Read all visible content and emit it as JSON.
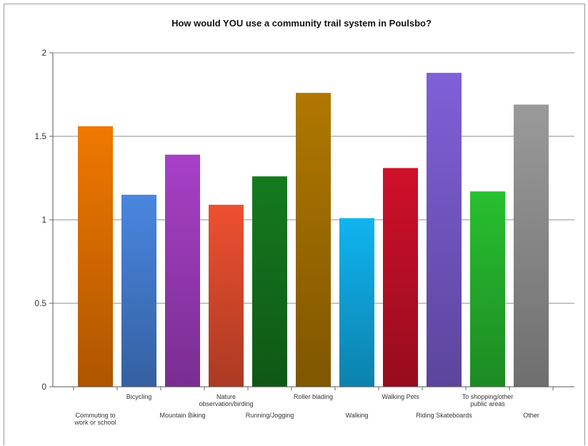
{
  "chart_data": {
    "type": "bar",
    "title": "How would YOU use a community trail system in Poulsbo?",
    "xlabel": "",
    "ylabel": "",
    "ylim": [
      0,
      2
    ],
    "yticks": [
      "0",
      "0.5",
      "1",
      "1.5",
      "2"
    ],
    "grid": true,
    "legend": "none",
    "categories": [
      "Commuting to work or school",
      "Bicycling",
      "Mountain Biking",
      "Nature observation/birding",
      "Running/Jogging",
      "Roller blading",
      "Walking",
      "Walking Pets",
      "Riding Skateboards",
      "To shopping/other public areas",
      "Other"
    ],
    "values": [
      1.56,
      1.15,
      1.39,
      1.09,
      1.26,
      1.76,
      1.01,
      1.31,
      1.88,
      1.17,
      1.69
    ],
    "colors": [
      "#f07800",
      "#4a86e0",
      "#a840c8",
      "#ee5030",
      "#157a1e",
      "#b07800",
      "#10b4f0",
      "#d0102a",
      "#8060d8",
      "#28c030",
      "#9a9a9a"
    ],
    "category_labels": [
      [
        "Commuting to",
        "work or school"
      ],
      [
        "Bicycling"
      ],
      [
        "Mountain Biking"
      ],
      [
        "Nature",
        "observation/birding"
      ],
      [
        "Running/Jogging"
      ],
      [
        "Roller blading"
      ],
      [
        "Walking"
      ],
      [
        "Walking Pets"
      ],
      [
        "Riding Skateboards"
      ],
      [
        "To shopping/other",
        "public areas"
      ],
      [
        "Other"
      ]
    ]
  }
}
